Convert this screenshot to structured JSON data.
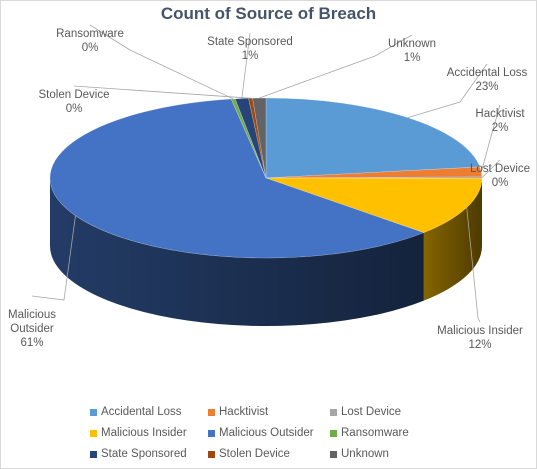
{
  "chart_data": {
    "type": "pie",
    "title": "Count of Source of Breach",
    "categories": [
      "Accidental Loss",
      "Hacktivist",
      "Lost Device",
      "Malicious Insider",
      "Malicious Outsider",
      "Ransomware",
      "State Sponsored",
      "Stolen Device",
      "Unknown"
    ],
    "values": [
      23,
      2,
      0.3,
      12,
      61,
      0.3,
      1,
      0.3,
      1
    ],
    "data_labels": [
      "23%",
      "2%",
      "0%",
      "12%",
      "61%",
      "0%",
      "1%",
      "0%",
      "1%"
    ],
    "colors": [
      "#5b9bd5",
      "#ed7d31",
      "#a5a5a5",
      "#ffc000",
      "#4472c4",
      "#70ad47",
      "#264478",
      "#9e480e",
      "#636363"
    ],
    "legend_position": "bottom"
  }
}
